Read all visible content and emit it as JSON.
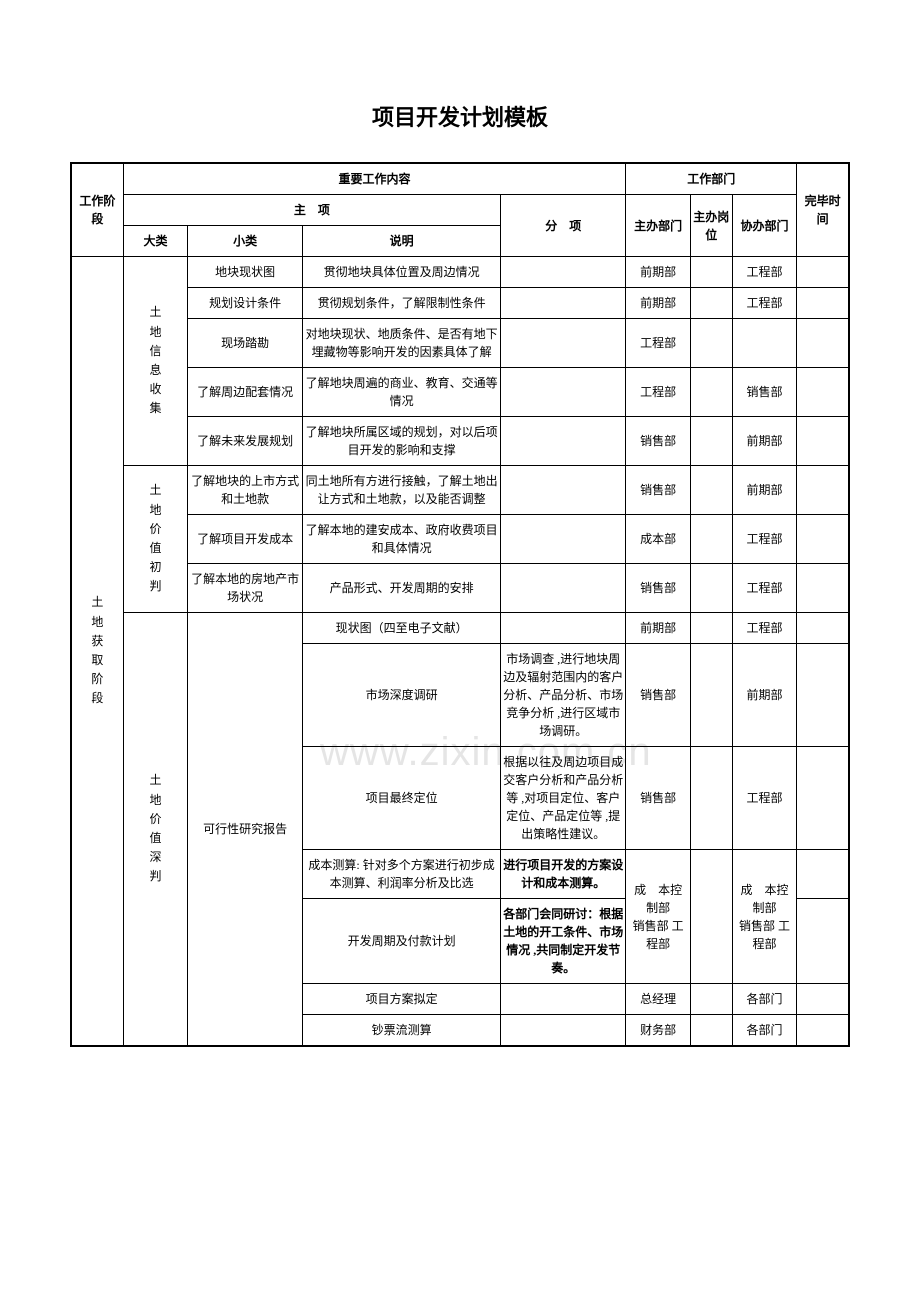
{
  "page": {
    "title": "项目开发计划模板",
    "watermark": "www.zixin.com.cn"
  },
  "header": {
    "stage": "工作阶段",
    "main_content": "重要工作内容",
    "main_item": "主　项",
    "sub_item": "分　项",
    "big_cat": "大类",
    "small_cat": "小类",
    "desc": "说明",
    "dept_group": "工作部门",
    "host_dept": "主办部门",
    "host_post": "主办岗位",
    "assist_dept": "协办部门",
    "finish_time": "完毕时间"
  },
  "stage_label": "土地获取阶段",
  "groups": [
    {
      "big_cat": "土地信息收集",
      "rows": [
        {
          "small": "地块现状图",
          "desc": "贯彻地块具体位置及周边情况",
          "sub": "",
          "host": "前期部",
          "post": "",
          "assist": "工程部",
          "time": ""
        },
        {
          "small": "规划设计条件",
          "desc": "贯彻规划条件，了解限制性条件",
          "sub": "",
          "host": "前期部",
          "post": "",
          "assist": "工程部",
          "time": ""
        },
        {
          "small": "现场踏勘",
          "desc": "对地块现状、地质条件、是否有地下埋藏物等影响开发的因素具体了解",
          "sub": "",
          "host": "工程部",
          "post": "",
          "assist": "",
          "time": ""
        },
        {
          "small": "了解周边配套情况",
          "desc": "了解地块周遍的商业、教育、交通等情况",
          "sub": "",
          "host": "工程部",
          "post": "",
          "assist": "销售部",
          "time": ""
        },
        {
          "small": "了解未来发展规划",
          "desc": "了解地块所属区域的规划，对以后项目开发的影响和支撑",
          "sub": "",
          "host": "销售部",
          "post": "",
          "assist": "前期部",
          "time": ""
        }
      ]
    },
    {
      "big_cat": "土地价值初判",
      "rows": [
        {
          "small": "了解地块的上市方式和土地款",
          "desc": "同土地所有方进行接触，了解土地出让方式和土地款，以及能否调整",
          "sub": "",
          "host": "销售部",
          "post": "",
          "assist": "前期部",
          "time": ""
        },
        {
          "small": "了解项目开发成本",
          "desc": "了解本地的建安成本、政府收费项目和具体情况",
          "sub": "",
          "host": "成本部",
          "post": "",
          "assist": "工程部",
          "time": ""
        },
        {
          "small": "了解本地的房地产市场状况",
          "desc": "产品形式、开发周期的安排",
          "sub": "",
          "host": "销售部",
          "post": "",
          "assist": "工程部",
          "time": ""
        }
      ]
    }
  ],
  "deep": {
    "big_cat": "土地价值深判",
    "small_cat": "可行性研究报告",
    "rows": [
      {
        "desc": "现状图（四至电子文献）",
        "sub": "",
        "host": "前期部",
        "post": "",
        "assist": "工程部",
        "time": ""
      },
      {
        "desc": "市场深度调研",
        "sub": "市场调查 ,进行地块周边及辐射范围内的客户分析、产品分析、市场竞争分析 ,进行区域市场调研。",
        "host": "销售部",
        "post": "",
        "assist": "前期部",
        "time": ""
      },
      {
        "desc": "项目最终定位",
        "sub": "根据以往及周边项目成交客户分析和产品分析等 ,对项目定位、客户定位、产品定位等 ,提出策略性建议。",
        "host": "销售部",
        "post": "",
        "assist": "工程部",
        "time": ""
      },
      {
        "desc": "成本测算: 针对多个方案进行初步成本测算、利润率分析及比选",
        "sub": "进行项目开发的方案设计和成本测算。",
        "host": "成　本控制部",
        "post": "",
        "assist": "成　本控制部",
        "time": ""
      },
      {
        "desc": "开发周期及付款计划",
        "sub": "各部门会同研讨：根据土地的开工条件、市场情况 ,共同制定开发节奏。",
        "host": "销售部 工程部",
        "post": "",
        "assist": "销售部 工程部",
        "time": ""
      },
      {
        "desc": "项目方案拟定",
        "sub": "",
        "host": "总经理",
        "post": "",
        "assist": "各部门",
        "time": ""
      },
      {
        "desc": "钞票流测算",
        "sub": "",
        "host": "财务部",
        "post": "",
        "assist": "各部门",
        "time": ""
      }
    ]
  },
  "style": {
    "colwidths": [
      "50",
      "62",
      "110",
      "190",
      "120",
      "62",
      "40",
      "62",
      "50"
    ],
    "border_color": "#000000",
    "outer_border_width": 2,
    "inner_border_width": 1,
    "font_size_body": 12,
    "font_size_title": 22,
    "background": "#ffffff",
    "text_color": "#000000"
  }
}
